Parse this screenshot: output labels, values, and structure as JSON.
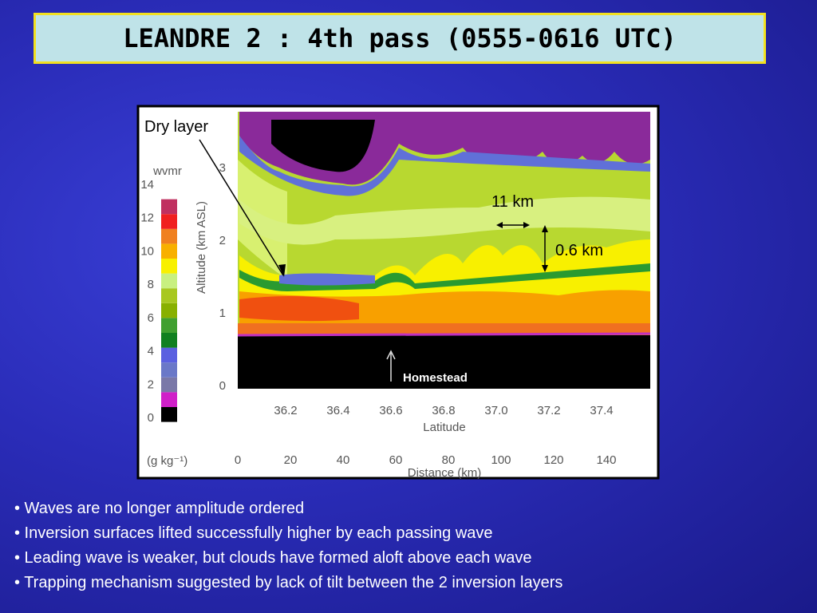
{
  "title": "LEANDRE 2 : 4th pass (0555-0616 UTC)",
  "figure": {
    "annotations": {
      "dry_layer": "Dry layer",
      "wavelength": "11 km",
      "amplitude": "0.6 km",
      "site": "Homestead"
    },
    "y_axis": {
      "label": "Altitude (km ASL)",
      "ticks": [
        "0",
        "1",
        "2",
        "3"
      ]
    },
    "x_axis": {
      "label": "Latitude",
      "ticks": [
        "36.2",
        "36.4",
        "36.6",
        "36.8",
        "37.0",
        "37.2",
        "37.4"
      ]
    },
    "distance_axis": {
      "label": "Distance (km)",
      "ticks": [
        "0",
        "20",
        "40",
        "60",
        "80",
        "100",
        "120",
        "140"
      ]
    },
    "colorbar": {
      "title": "wvmr",
      "unit": "(g kg⁻¹)",
      "ticks": [
        "0",
        "2",
        "4",
        "6",
        "8",
        "10",
        "12",
        "14"
      ]
    }
  },
  "bullets": [
    "• Waves are no longer amplitude ordered",
    "• Inversion surfaces lifted successfully higher by each passing wave",
    "• Leading wave is weaker, but clouds have formed aloft above each wave",
    "• Trapping mechanism suggested by lack of tilt between the 2 inversion layers"
  ]
}
